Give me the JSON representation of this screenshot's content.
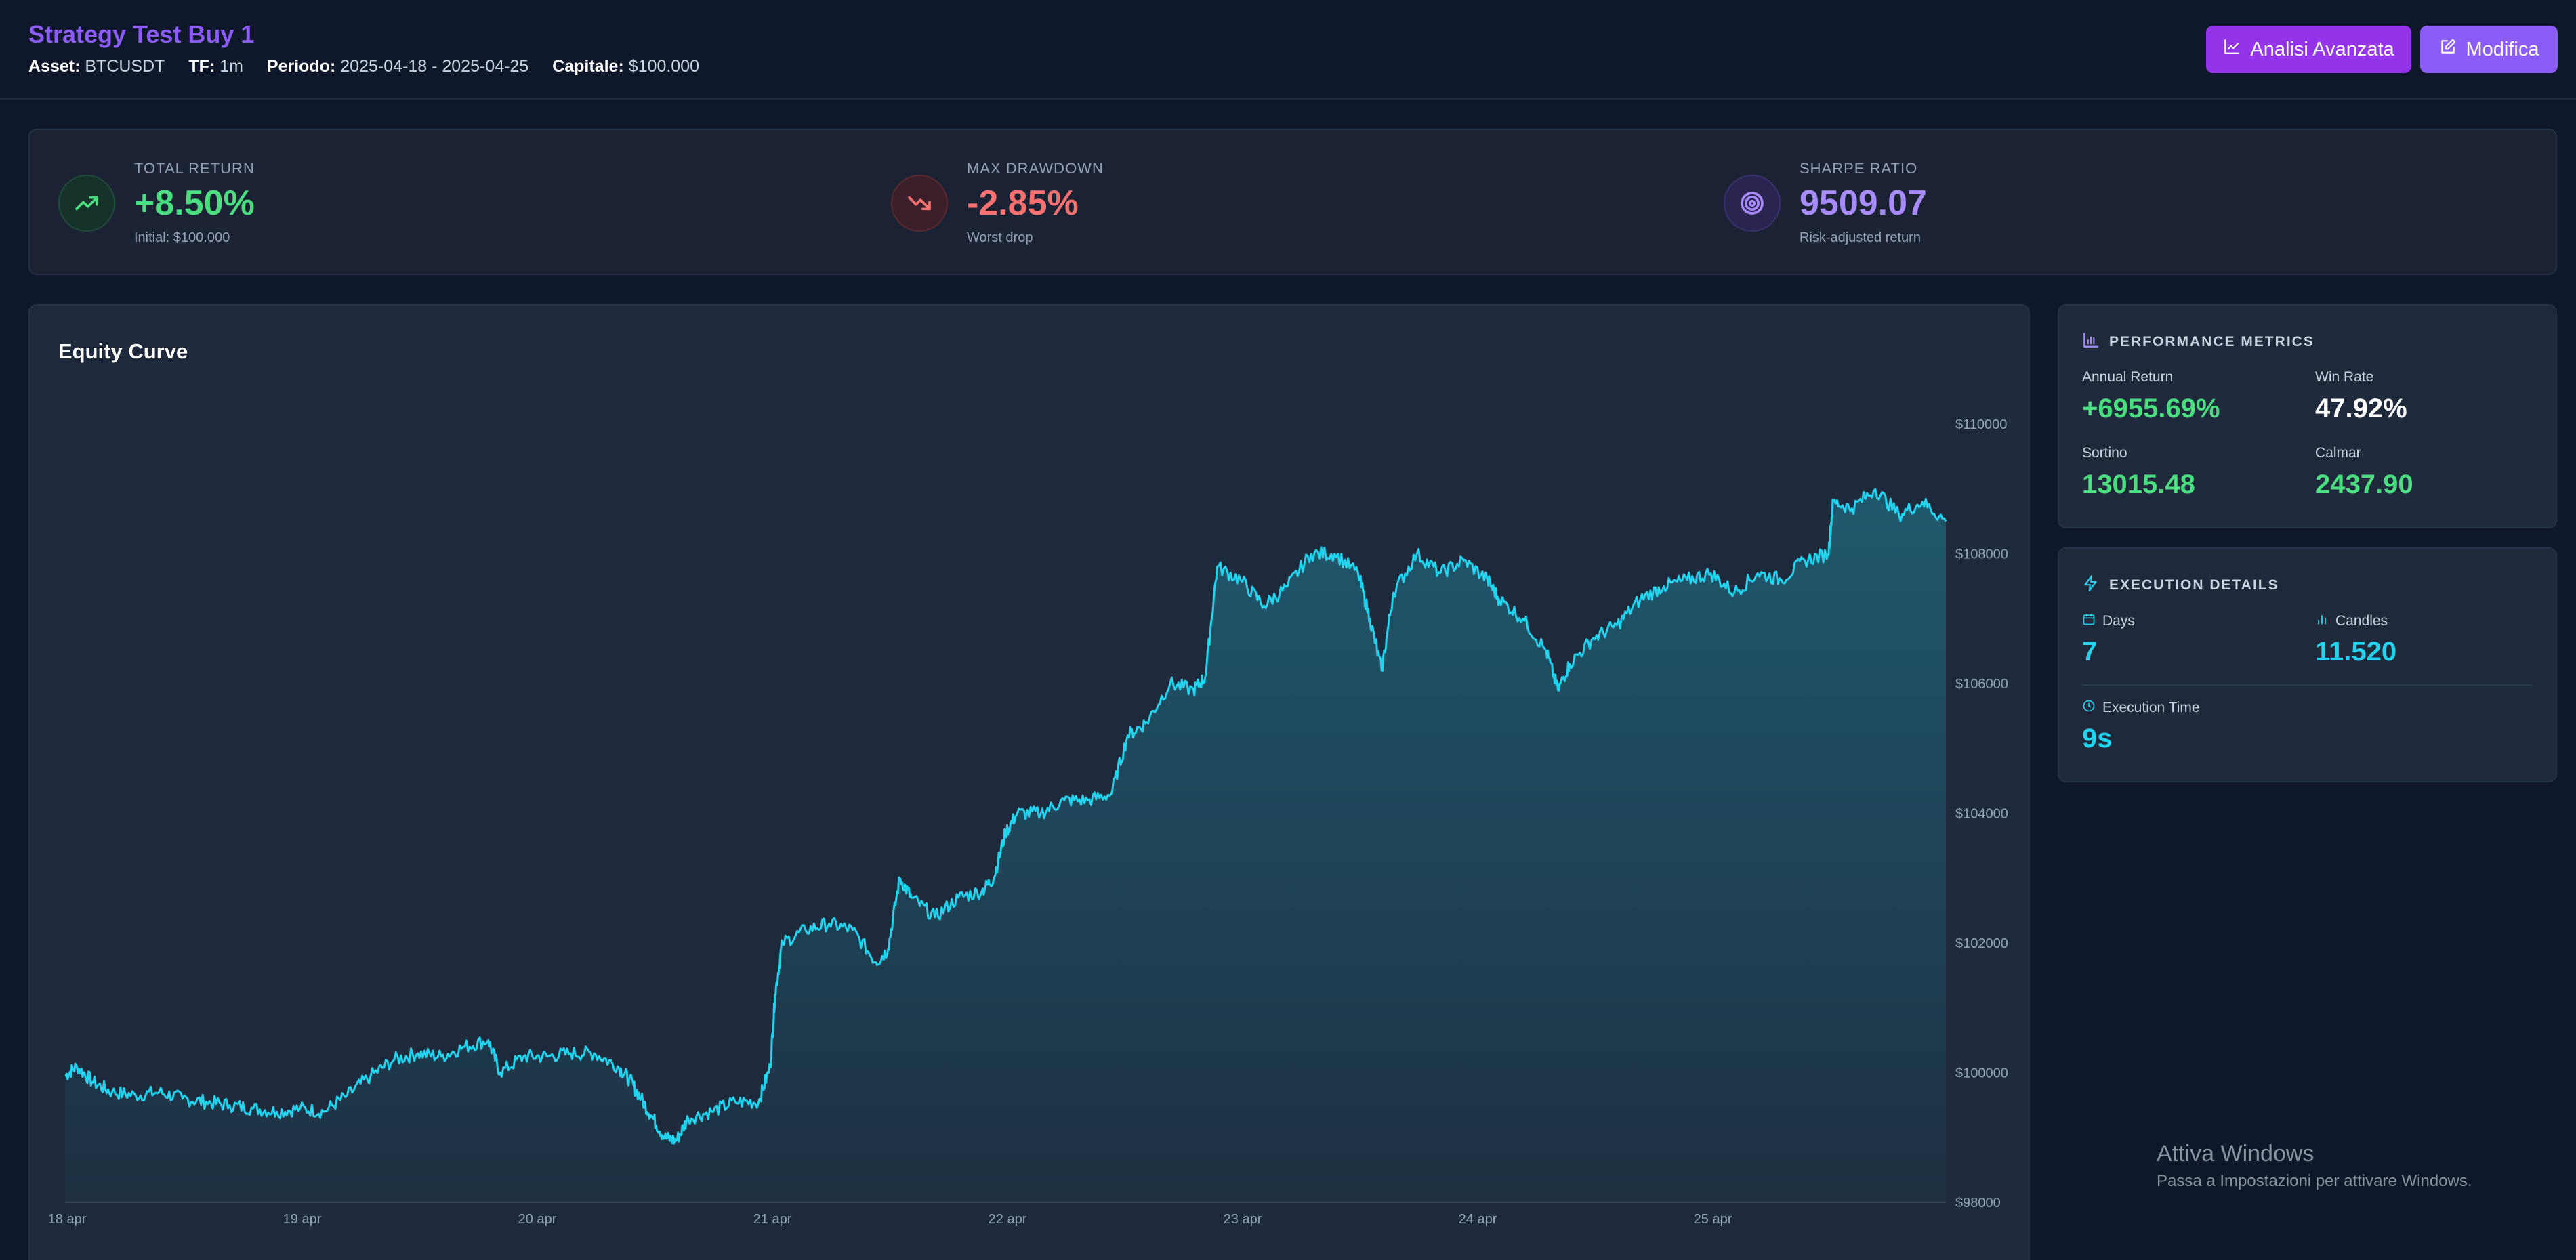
{
  "header": {
    "title": "Strategy Test Buy 1",
    "meta": [
      {
        "key": "Asset:",
        "value": "BTCUSDT"
      },
      {
        "key": "TF:",
        "value": "1m"
      },
      {
        "key": "Periodo:",
        "value": "2025-04-18 - 2025-04-25"
      },
      {
        "key": "Capitale:",
        "value": "$100.000"
      }
    ],
    "analisi_label": "Analisi Avanzata",
    "modifica_label": "Modifica"
  },
  "kpis": {
    "total_return": {
      "label": "TOTAL RETURN",
      "value": "+8.50%",
      "sub": "Initial: $100.000",
      "color": "#4ade80"
    },
    "max_drawdown": {
      "label": "MAX DRAWDOWN",
      "value": "-2.85%",
      "sub": "Worst drop",
      "color": "#f87171"
    },
    "sharpe": {
      "label": "SHARPE RATIO",
      "value": "9509.07",
      "sub": "Risk-adjusted return",
      "color": "#a78bfa"
    }
  },
  "chart": {
    "title": "Equity Curve",
    "line_color": "#22d3ee"
  },
  "chart_data": {
    "type": "area",
    "title": "Equity Curve",
    "xlabel": "",
    "ylabel": "",
    "x_ticks": [
      "18 apr",
      "19 apr",
      "20 apr",
      "21 apr",
      "22 apr",
      "23 apr",
      "24 apr",
      "25 apr"
    ],
    "y_ticks": [
      "$98000",
      "$100000",
      "$102000",
      "$104000",
      "$106000",
      "$108000",
      "$110000"
    ],
    "ylim": [
      98000,
      110500
    ],
    "xlim": [
      0,
      8
    ],
    "series": [
      {
        "points": [
          [
            0.0,
            99950
          ],
          [
            0.05,
            100100
          ],
          [
            0.12,
            99850
          ],
          [
            0.2,
            99700
          ],
          [
            0.3,
            99650
          ],
          [
            0.4,
            99700
          ],
          [
            0.5,
            99600
          ],
          [
            0.6,
            99550
          ],
          [
            0.7,
            99500
          ],
          [
            0.8,
            99450
          ],
          [
            0.9,
            99400
          ],
          [
            1.0,
            99450
          ],
          [
            1.1,
            99400
          ],
          [
            1.2,
            99650
          ],
          [
            1.3,
            99950
          ],
          [
            1.4,
            100200
          ],
          [
            1.5,
            100300
          ],
          [
            1.6,
            100250
          ],
          [
            1.7,
            100400
          ],
          [
            1.8,
            100500
          ],
          [
            1.85,
            100000
          ],
          [
            1.95,
            100250
          ],
          [
            2.05,
            100250
          ],
          [
            2.15,
            100300
          ],
          [
            2.25,
            100300
          ],
          [
            2.35,
            100100
          ],
          [
            2.4,
            99900
          ],
          [
            2.45,
            99600
          ],
          [
            2.5,
            99300
          ],
          [
            2.55,
            99000
          ],
          [
            2.6,
            98950
          ],
          [
            2.65,
            99300
          ],
          [
            2.75,
            99400
          ],
          [
            2.85,
            99550
          ],
          [
            2.95,
            99550
          ],
          [
            3.0,
            100100
          ],
          [
            3.02,
            101200
          ],
          [
            3.05,
            102000
          ],
          [
            3.15,
            102200
          ],
          [
            3.25,
            102300
          ],
          [
            3.35,
            102200
          ],
          [
            3.45,
            101700
          ],
          [
            3.5,
            101900
          ],
          [
            3.55,
            103000
          ],
          [
            3.6,
            102700
          ],
          [
            3.7,
            102400
          ],
          [
            3.8,
            102700
          ],
          [
            3.9,
            102800
          ],
          [
            3.95,
            103000
          ],
          [
            4.0,
            103700
          ],
          [
            4.05,
            104000
          ],
          [
            4.15,
            104000
          ],
          [
            4.25,
            104200
          ],
          [
            4.35,
            104200
          ],
          [
            4.45,
            104300
          ],
          [
            4.52,
            105200
          ],
          [
            4.6,
            105400
          ],
          [
            4.7,
            106000
          ],
          [
            4.8,
            105900
          ],
          [
            4.85,
            106100
          ],
          [
            4.9,
            107800
          ],
          [
            5.0,
            107600
          ],
          [
            5.1,
            107200
          ],
          [
            5.2,
            107500
          ],
          [
            5.3,
            108000
          ],
          [
            5.4,
            108000
          ],
          [
            5.5,
            107700
          ],
          [
            5.55,
            107000
          ],
          [
            5.6,
            106200
          ],
          [
            5.65,
            107400
          ],
          [
            5.75,
            108000
          ],
          [
            5.85,
            107700
          ],
          [
            5.95,
            107900
          ],
          [
            6.05,
            107600
          ],
          [
            6.1,
            107300
          ],
          [
            6.2,
            107000
          ],
          [
            6.3,
            106500
          ],
          [
            6.35,
            105900
          ],
          [
            6.4,
            106300
          ],
          [
            6.5,
            106700
          ],
          [
            6.6,
            106900
          ],
          [
            6.7,
            107300
          ],
          [
            6.8,
            107500
          ],
          [
            6.9,
            107600
          ],
          [
            7.0,
            107700
          ],
          [
            7.1,
            107400
          ],
          [
            7.2,
            107700
          ],
          [
            7.3,
            107600
          ],
          [
            7.4,
            107900
          ],
          [
            7.5,
            108000
          ],
          [
            7.52,
            108800
          ],
          [
            7.6,
            108700
          ],
          [
            7.7,
            109000
          ],
          [
            7.8,
            108600
          ],
          [
            7.9,
            108800
          ],
          [
            8.0,
            108500
          ]
        ]
      }
    ]
  },
  "performance": {
    "title": "PERFORMANCE METRICS",
    "annual_return": {
      "label": "Annual Return",
      "value": "+6955.69%"
    },
    "win_rate": {
      "label": "Win Rate",
      "value": "47.92%"
    },
    "sortino": {
      "label": "Sortino",
      "value": "13015.48"
    },
    "calmar": {
      "label": "Calmar",
      "value": "2437.90"
    }
  },
  "execution": {
    "title": "EXECUTION DETAILS",
    "days": {
      "label": "Days",
      "value": "7"
    },
    "candles": {
      "label": "Candles",
      "value": "11.520"
    },
    "exec_time": {
      "label": "Execution Time",
      "value": "9s"
    }
  },
  "watermark": {
    "title": "Attiva Windows",
    "subtitle": "Passa a Impostazioni per attivare Windows."
  }
}
